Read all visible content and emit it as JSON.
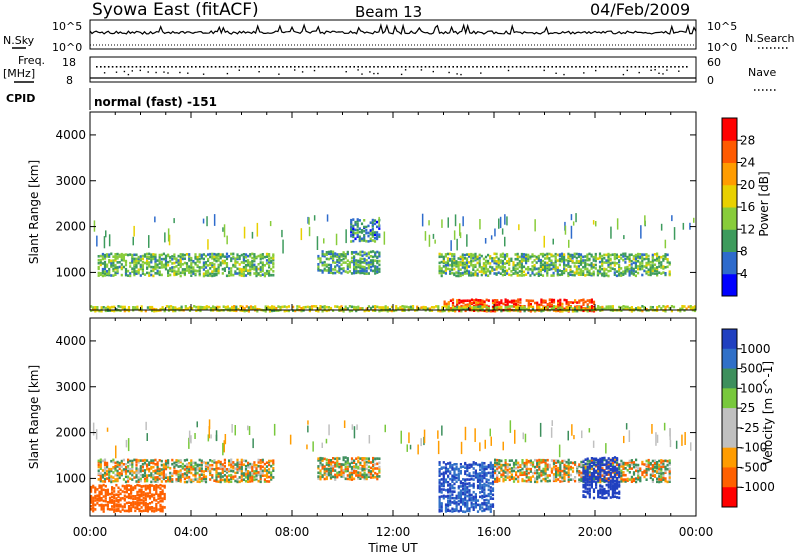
{
  "header": {
    "title": "Syowa East (fitACF)",
    "beam": "Beam 13",
    "date": "04/Feb/2009"
  },
  "panels": {
    "nsky_label": "N.Sky",
    "nsky_top": "10^5",
    "nsky_bottom": "10^0",
    "nsearch_label": "N.Search",
    "nsearch_top": "10^5",
    "nsearch_bottom": "10^0",
    "freq_label": "Freq.",
    "freq_unit": "[MHz]",
    "freq_top": "18",
    "freq_bottom": "8",
    "nave_label": "Nave",
    "nave_top": "60",
    "nave_bottom": "0",
    "cpid_label": "CPID",
    "cpid_value": "normal (fast) -151"
  },
  "chart_data": [
    {
      "type": "heatmap",
      "parameter": "Power",
      "ylabel": "Slant Range [km]",
      "xlabel": "Time UT",
      "xlim": [
        "00:00",
        "00:00"
      ],
      "x_ticks": [
        "00:00",
        "04:00",
        "08:00",
        "12:00",
        "16:00",
        "20:00",
        "00:00"
      ],
      "ylim": [
        180,
        4500
      ],
      "y_ticks": [
        1000,
        2000,
        3000,
        4000
      ],
      "colorbar": {
        "label": "Power [dB]",
        "ticks": [
          "4",
          "8",
          "12",
          "16",
          "20",
          "24",
          "28"
        ],
        "range": [
          0,
          30
        ],
        "colors": [
          "#0000ff",
          "#2e6bcc",
          "#3d9b5c",
          "#88cc3a",
          "#e8d000",
          "#ff9c00",
          "#ff5a00",
          "#ff0000"
        ]
      },
      "echo_regions": [
        {
          "time_h": [
            0.3,
            7.3
          ],
          "range_km": [
            950,
            1450
          ],
          "power_db": 12
        },
        {
          "time_h": [
            9.0,
            11.5
          ],
          "range_km": [
            1000,
            1500
          ],
          "power_db": 10
        },
        {
          "time_h": [
            10.3,
            11.5
          ],
          "range_km": [
            1700,
            2200
          ],
          "power_db": 8
        },
        {
          "time_h": [
            13.8,
            23.0
          ],
          "range_km": [
            950,
            1450
          ],
          "power_db": 12
        },
        {
          "time_h": [
            14.0,
            20.0
          ],
          "range_km": [
            180,
            450
          ],
          "power_db": 28
        },
        {
          "time_h": [
            0.0,
            24.0
          ],
          "range_km": [
            180,
            300
          ],
          "power_db": 16
        }
      ]
    },
    {
      "type": "heatmap",
      "parameter": "Velocity",
      "ylabel": "Slant Range [km]",
      "xlabel": "Time UT",
      "xlim": [
        "00:00",
        "00:00"
      ],
      "x_ticks": [
        "00:00",
        "04:00",
        "08:00",
        "12:00",
        "16:00",
        "20:00",
        "00:00"
      ],
      "ylim": [
        180,
        4500
      ],
      "y_ticks": [
        1000,
        2000,
        3000,
        4000
      ],
      "colorbar": {
        "label": "Velocity [m s^-1]",
        "ticks": [
          "1000",
          "500",
          "100",
          "25",
          "-25",
          "-100",
          "-500",
          "-1000"
        ],
        "colors": [
          "#2040c0",
          "#3070c8",
          "#3d8f5c",
          "#78c83c",
          "#c0c0c0",
          "#c0c0c0",
          "#ff9c00",
          "#ff6000",
          "#ff0000"
        ]
      },
      "echo_regions": [
        {
          "time_h": [
            0.3,
            7.3
          ],
          "range_km": [
            950,
            1450
          ],
          "velocity": 0
        },
        {
          "time_h": [
            9.0,
            11.5
          ],
          "range_km": [
            1000,
            1500
          ],
          "velocity": 0
        },
        {
          "time_h": [
            0.0,
            3.0
          ],
          "range_km": [
            300,
            900
          ],
          "velocity": -300
        },
        {
          "time_h": [
            13.8,
            16.0
          ],
          "range_km": [
            300,
            1400
          ],
          "velocity": 700
        },
        {
          "time_h": [
            16.0,
            23.0
          ],
          "range_km": [
            950,
            1450
          ],
          "velocity": 0
        },
        {
          "time_h": [
            19.5,
            21.0
          ],
          "range_km": [
            600,
            1500
          ],
          "velocity": 900
        }
      ]
    }
  ]
}
